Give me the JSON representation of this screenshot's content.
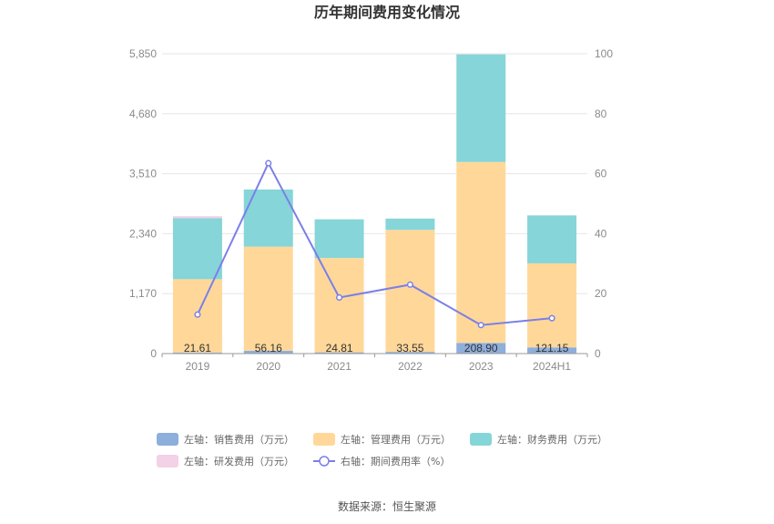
{
  "chart_data": {
    "type": "bar",
    "title": "历年期间费用变化情况",
    "categories": [
      "2019",
      "2020",
      "2021",
      "2022",
      "2023",
      "2024H1"
    ],
    "stacked": true,
    "y_left": {
      "ticks": [
        "0",
        "1,170",
        "2,340",
        "3,510",
        "4,680",
        "5,850"
      ],
      "range": [
        0,
        5850
      ]
    },
    "y_right": {
      "ticks": [
        "0",
        "20",
        "40",
        "60",
        "80",
        "100"
      ],
      "range": [
        0,
        100
      ]
    },
    "series": [
      {
        "name": "左轴：销售费用（万元）",
        "axis": "left",
        "color": "#8eaedc",
        "values": [
          21.61,
          56.16,
          24.81,
          33.55,
          208.9,
          121.15
        ],
        "labels": [
          "21.61",
          "56.16",
          "24.81",
          "33.55",
          "208.90",
          "121.15"
        ]
      },
      {
        "name": "左轴：管理费用（万元）",
        "axis": "left",
        "color": "#ffd899",
        "values": [
          1430,
          2030,
          1840,
          2380,
          3530,
          1640
        ]
      },
      {
        "name": "左轴：财务费用（万元）",
        "axis": "left",
        "color": "#86d5d8",
        "values": [
          1190,
          1115,
          755,
          220,
          2100,
          935
        ]
      },
      {
        "name": "左轴：研发费用（万元）",
        "axis": "left",
        "color": "#f3d1e6",
        "values": [
          40,
          0,
          0,
          0,
          0,
          0
        ]
      },
      {
        "name": "右轴：期间费用率（%）",
        "axis": "right",
        "type": "line",
        "color": "#7b7fe8",
        "values": [
          13,
          63.5,
          18.7,
          23,
          9.5,
          11.8
        ]
      }
    ],
    "legend": {
      "placement": "bottom"
    },
    "grid": true
  },
  "source": "数据来源：恒生聚源"
}
